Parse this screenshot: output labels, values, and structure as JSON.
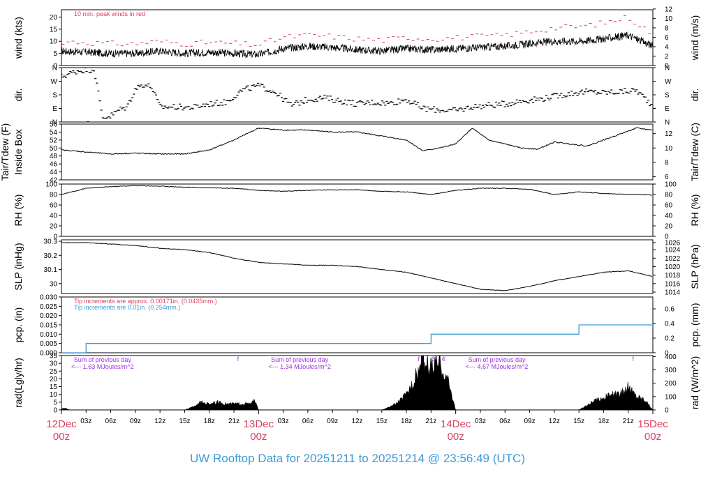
{
  "title": "UW Rooftop Data for 20251211  to  20251214 @ 23:56:49  (UTC)",
  "colors": {
    "peak": "#d9415f",
    "bucket": "#3a9bd9",
    "annot": "#9b30d9",
    "date": "#d9415f",
    "title": "#3a9bd9"
  },
  "chart_data": [
    {
      "type": "line",
      "name": "wind",
      "ylabel": "wind (kts)",
      "ylabel_right": "wind (m/s)",
      "ylim": [
        0,
        23
      ],
      "yticks": [
        0,
        5,
        10,
        15,
        20
      ],
      "yticks_right": {
        "labels": [
          0,
          2,
          4,
          6,
          8,
          10,
          12
        ],
        "values": [
          0,
          3.89,
          7.78,
          11.66,
          15.55,
          19.44,
          23.33
        ]
      },
      "annotation": "10 min. peak winds in red",
      "x": [
        0,
        3,
        6,
        9,
        12,
        15,
        18,
        21,
        24,
        27,
        30,
        33,
        36,
        39,
        42,
        45,
        48,
        51,
        54,
        57,
        60,
        63,
        66,
        69,
        72
      ],
      "series": [
        {
          "values": [
            6,
            5.5,
            5,
            5,
            6,
            5,
            5.5,
            5,
            4.5,
            7,
            8,
            7.5,
            6.5,
            6,
            7,
            6.5,
            7,
            7.5,
            8,
            9,
            10,
            10,
            11,
            12.5,
            8
          ]
        },
        {
          "name": "10 min. peak winds",
          "values": [
            10,
            9.5,
            9,
            9,
            10,
            9,
            9.5,
            9,
            8.5,
            11.5,
            12.5,
            12,
            11,
            10.5,
            11.5,
            11,
            11.5,
            12,
            12.5,
            14,
            15.5,
            16,
            17.5,
            20,
            13
          ]
        }
      ]
    },
    {
      "type": "scatter",
      "name": "wind direction",
      "ylabel": "dir.",
      "ylabel_right": "dir.",
      "ylim": [
        0,
        360
      ],
      "yticks": {
        "labels": [
          "N",
          "E",
          "S",
          "W",
          "N"
        ],
        "values": [
          0,
          90,
          180,
          270,
          360
        ]
      },
      "x": [
        0,
        1,
        2,
        3,
        4,
        5,
        6,
        7,
        8,
        9,
        10,
        11,
        12,
        14,
        16,
        18,
        20,
        22,
        24,
        26,
        28,
        30,
        32,
        34,
        36,
        38,
        40,
        42,
        44,
        46,
        48,
        50,
        52,
        54,
        56,
        58,
        60,
        62,
        64,
        66,
        68,
        70,
        72
      ],
      "values": [
        300,
        320,
        340,
        345,
        350,
        30,
        40,
        80,
        100,
        220,
        250,
        230,
        100,
        100,
        95,
        120,
        130,
        210,
        240,
        200,
        110,
        150,
        160,
        140,
        120,
        130,
        125,
        150,
        90,
        80,
        75,
        100,
        110,
        120,
        140,
        150,
        170,
        190,
        200,
        195,
        200,
        210,
        110
      ]
    },
    {
      "type": "line",
      "name": "inside box temperature",
      "ylabel": "Inside Box",
      "ylabel_outer": "Tair/Tdew (F)",
      "ylabel_right": "Tair/Tdew (C)",
      "ylim": [
        42,
        56
      ],
      "yticks": [
        42,
        44,
        46,
        48,
        50,
        52,
        54,
        56
      ],
      "yticks_right": {
        "labels": [
          6,
          8,
          10,
          12
        ],
        "values": [
          42.8,
          46.4,
          50.0,
          53.6
        ]
      },
      "x": [
        0,
        3,
        6,
        9,
        12,
        15,
        18,
        21,
        24,
        27,
        30,
        33,
        36,
        39,
        42,
        44,
        46,
        48,
        50,
        52,
        54,
        56,
        58,
        60,
        62,
        64,
        66,
        68,
        70,
        72
      ],
      "values": [
        49.5,
        49,
        48.5,
        48.7,
        48.5,
        48.5,
        49.5,
        52,
        55,
        54.5,
        54.5,
        54,
        54,
        53,
        52,
        49.3,
        50,
        51,
        55,
        52,
        51,
        50,
        49.7,
        51.5,
        51,
        50.5,
        52,
        53.5,
        55,
        54.5
      ]
    },
    {
      "type": "line",
      "name": "relative humidity",
      "ylabel": "RH (%)",
      "ylabel_right": "RH (%)",
      "ylim": [
        0,
        100
      ],
      "yticks": [
        0,
        20,
        40,
        60,
        80,
        100
      ],
      "x": [
        0,
        3,
        6,
        9,
        12,
        15,
        18,
        21,
        24,
        27,
        30,
        33,
        36,
        39,
        42,
        45,
        48,
        51,
        54,
        57,
        60,
        63,
        66,
        69,
        72
      ],
      "values": [
        80,
        92,
        95,
        97,
        96,
        94,
        93,
        92,
        88,
        86,
        88,
        89,
        89,
        86,
        85,
        80,
        88,
        92,
        92,
        90,
        80,
        85,
        82,
        80,
        79
      ]
    },
    {
      "type": "line",
      "name": "sea level pressure",
      "ylabel": "SLP (inHg)",
      "ylabel_right": "SLP (hPa)",
      "ylim": [
        29.93,
        30.31
      ],
      "yticks": [
        30.0,
        30.1,
        30.2,
        30.3
      ],
      "yticks_right": {
        "labels": [
          1014,
          1016,
          1018,
          1020,
          1022,
          1024,
          1026
        ],
        "values": [
          29.94,
          30.0,
          30.06,
          30.12,
          30.18,
          30.24,
          30.29
        ]
      },
      "x": [
        0,
        3,
        6,
        9,
        12,
        15,
        18,
        21,
        24,
        27,
        30,
        33,
        36,
        39,
        42,
        45,
        48,
        51,
        54,
        57,
        60,
        63,
        66,
        69,
        72
      ],
      "values": [
        30.29,
        30.29,
        30.28,
        30.27,
        30.25,
        30.24,
        30.22,
        30.18,
        30.15,
        30.14,
        30.13,
        30.13,
        30.12,
        30.1,
        30.08,
        30.04,
        30.0,
        29.96,
        29.95,
        29.98,
        30.02,
        30.05,
        30.08,
        30.09,
        30.05
      ]
    },
    {
      "type": "line",
      "name": "precipitation",
      "ylabel": "pcp. (in)",
      "ylabel_right": "pcp. (mm)",
      "ylim": [
        0,
        0.03
      ],
      "yticks": [
        0,
        0.005,
        0.01,
        0.015,
        0.02,
        0.025,
        0.03
      ],
      "yticklabels": [
        "0.000",
        "0.005",
        "0.010",
        "0.015",
        "0.020",
        "0.025",
        "0.030"
      ],
      "yticks_right": {
        "labels": [
          0,
          0.2,
          0.4,
          0.6
        ],
        "values": [
          0,
          0.00787,
          0.01575,
          0.02362
        ]
      },
      "annotations": [
        "Tip increments are approx. 0.00171in. (0.0435mm.)",
        "Tip increments are 0.01in. (0.254mm.)"
      ],
      "steps": [
        {
          "x": 0,
          "value": 0
        },
        {
          "x": 3,
          "value": 0.005
        },
        {
          "x": 45,
          "value": 0.01
        },
        {
          "x": 63,
          "value": 0.015
        },
        {
          "x": 72,
          "value": 0.015
        }
      ]
    },
    {
      "type": "area",
      "name": "solar radiation",
      "ylabel": "rad(Lgly/hr)",
      "ylabel_right": "rad (W/m^2)",
      "ylim": [
        0,
        35
      ],
      "yticks": [
        0,
        5,
        10,
        15,
        20,
        25,
        30,
        35
      ],
      "yticks_right": {
        "labels": [
          0,
          100,
          200,
          300,
          400
        ],
        "values": [
          0,
          8.6,
          17.2,
          25.8,
          34.4
        ]
      },
      "x": [
        0,
        0.5,
        1,
        15,
        16,
        17,
        18,
        19,
        20,
        21,
        22,
        23,
        23.5,
        24,
        39,
        40,
        41,
        42,
        43,
        44,
        45,
        46,
        47,
        48,
        63,
        64,
        65,
        66,
        67,
        68,
        69,
        70,
        71,
        72
      ],
      "values": [
        1,
        1,
        0,
        0,
        2,
        5,
        4,
        5,
        4,
        4,
        4,
        4,
        6,
        0,
        0,
        2,
        5,
        10,
        20,
        32,
        28,
        30,
        20,
        0,
        0,
        3,
        6,
        8,
        10,
        10,
        15,
        9,
        7,
        0
      ],
      "annotations": [
        {
          "label": "Sum of previous day",
          "value": "<--- 1.63 MJoules/m^2"
        },
        {
          "label": "Sum of previous day",
          "value": "<--- 1.34 MJoules/m^2"
        },
        {
          "label": "Sum of previous day",
          "value": "<--- 4.67 MJoules/m^2"
        }
      ],
      "marks": [
        "f",
        "f",
        "3",
        "4",
        "f",
        "f"
      ]
    }
  ],
  "xaxis": {
    "hour_labels": [
      "03z",
      "06z",
      "09z",
      "12z",
      "15z",
      "18z",
      "21z",
      "03z",
      "06z",
      "09z",
      "12z",
      "15z",
      "18z",
      "21z",
      "03z",
      "06z",
      "09z",
      "12z",
      "15z",
      "18z",
      "21z"
    ],
    "hour_values": [
      3,
      6,
      9,
      12,
      15,
      18,
      21,
      27,
      30,
      33,
      36,
      39,
      42,
      45,
      51,
      54,
      57,
      60,
      63,
      66,
      69
    ],
    "dates": [
      {
        "day": "12Dec",
        "time": "00z",
        "x": 0
      },
      {
        "day": "13Dec",
        "time": "00z",
        "x": 24
      },
      {
        "day": "14Dec",
        "time": "00z",
        "x": 48
      },
      {
        "day": "15Dec",
        "time": "00z",
        "x": 72
      }
    ]
  }
}
